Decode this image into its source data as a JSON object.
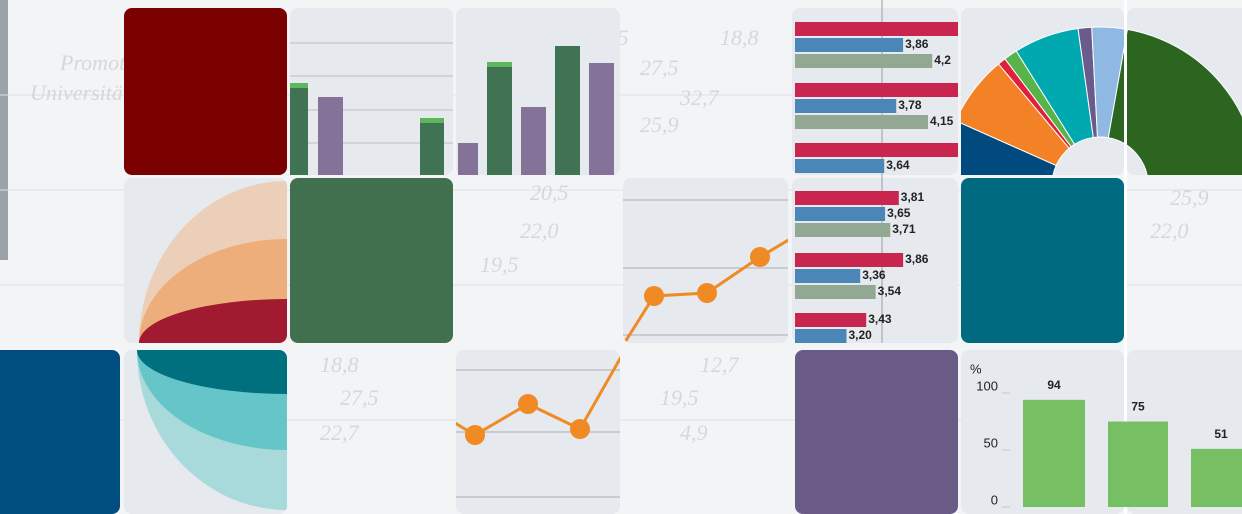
{
  "hbar": {
    "xlim": [
      2.6,
      4.5
    ],
    "colors": [
      "#c8264f",
      "#4a86b8",
      "#93a892"
    ],
    "groups": [
      {
        "values": [
          4.5,
          3.86,
          4.2
        ],
        "value_labels": [
          null,
          "3,86",
          "4,2"
        ]
      },
      {
        "values": [
          4.5,
          3.78,
          4.15
        ],
        "value_labels": [
          null,
          "3,78",
          "4,15"
        ]
      },
      {
        "values": [
          4.5,
          3.64
        ],
        "value_labels": [
          null,
          "3,64"
        ]
      },
      {
        "values": [
          3.81,
          3.65,
          3.71
        ],
        "value_labels": [
          "3,81",
          "3,65",
          "3,71"
        ]
      },
      {
        "values": [
          3.86,
          3.36,
          3.54
        ],
        "value_labels": [
          "3,86",
          "3,36",
          "3,54"
        ]
      },
      {
        "values": [
          3.43,
          3.2
        ],
        "value_labels": [
          "3,43",
          "3,20"
        ]
      }
    ]
  },
  "vbar": {
    "y_label": "%",
    "ylim": [
      0,
      100
    ],
    "yticks": [
      0,
      50,
      100
    ],
    "values": [
      94,
      75,
      51
    ],
    "color": "#77bf63"
  },
  "background_text": [
    "19,5",
    "18,8",
    "27,5",
    "32,7",
    "25,9",
    "22,0",
    "20,5",
    "22,0",
    "19,5",
    "18,8",
    "27,5",
    "22,7",
    "12,7",
    "19,5",
    "4,9",
    "25,9",
    "22,0",
    "Promotion",
    "Universität"
  ]
}
